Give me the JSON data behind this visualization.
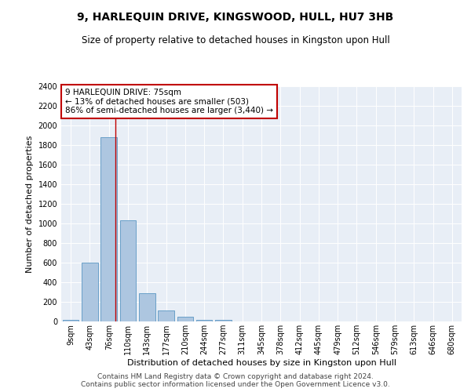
{
  "title": "9, HARLEQUIN DRIVE, KINGSWOOD, HULL, HU7 3HB",
  "subtitle": "Size of property relative to detached houses in Kingston upon Hull",
  "xlabel": "Distribution of detached houses by size in Kingston upon Hull",
  "ylabel": "Number of detached properties",
  "footer_line1": "Contains HM Land Registry data © Crown copyright and database right 2024.",
  "footer_line2": "Contains public sector information licensed under the Open Government Licence v3.0.",
  "categories": [
    "9sqm",
    "43sqm",
    "76sqm",
    "110sqm",
    "143sqm",
    "177sqm",
    "210sqm",
    "244sqm",
    "277sqm",
    "311sqm",
    "345sqm",
    "378sqm",
    "412sqm",
    "445sqm",
    "479sqm",
    "512sqm",
    "546sqm",
    "579sqm",
    "613sqm",
    "646sqm",
    "680sqm"
  ],
  "values": [
    15,
    600,
    1880,
    1030,
    290,
    115,
    45,
    20,
    15,
    0,
    0,
    0,
    0,
    0,
    0,
    0,
    0,
    0,
    0,
    0,
    0
  ],
  "bar_color": "#adc6e0",
  "bar_edge_color": "#6aa0c8",
  "vline_color": "#c00000",
  "annotation_text": "9 HARLEQUIN DRIVE: 75sqm\n← 13% of detached houses are smaller (503)\n86% of semi-detached houses are larger (3,440) →",
  "annotation_box_edge_color": "#c00000",
  "annotation_box_face_color": "white",
  "ylim": [
    0,
    2400
  ],
  "yticks": [
    0,
    200,
    400,
    600,
    800,
    1000,
    1200,
    1400,
    1600,
    1800,
    2000,
    2200,
    2400
  ],
  "bg_color": "#e8eef6",
  "grid_color": "white",
  "title_fontsize": 10,
  "subtitle_fontsize": 8.5,
  "ylabel_fontsize": 8,
  "xlabel_fontsize": 8,
  "tick_fontsize": 7,
  "annotation_fontsize": 7.5,
  "footer_fontsize": 6.5
}
